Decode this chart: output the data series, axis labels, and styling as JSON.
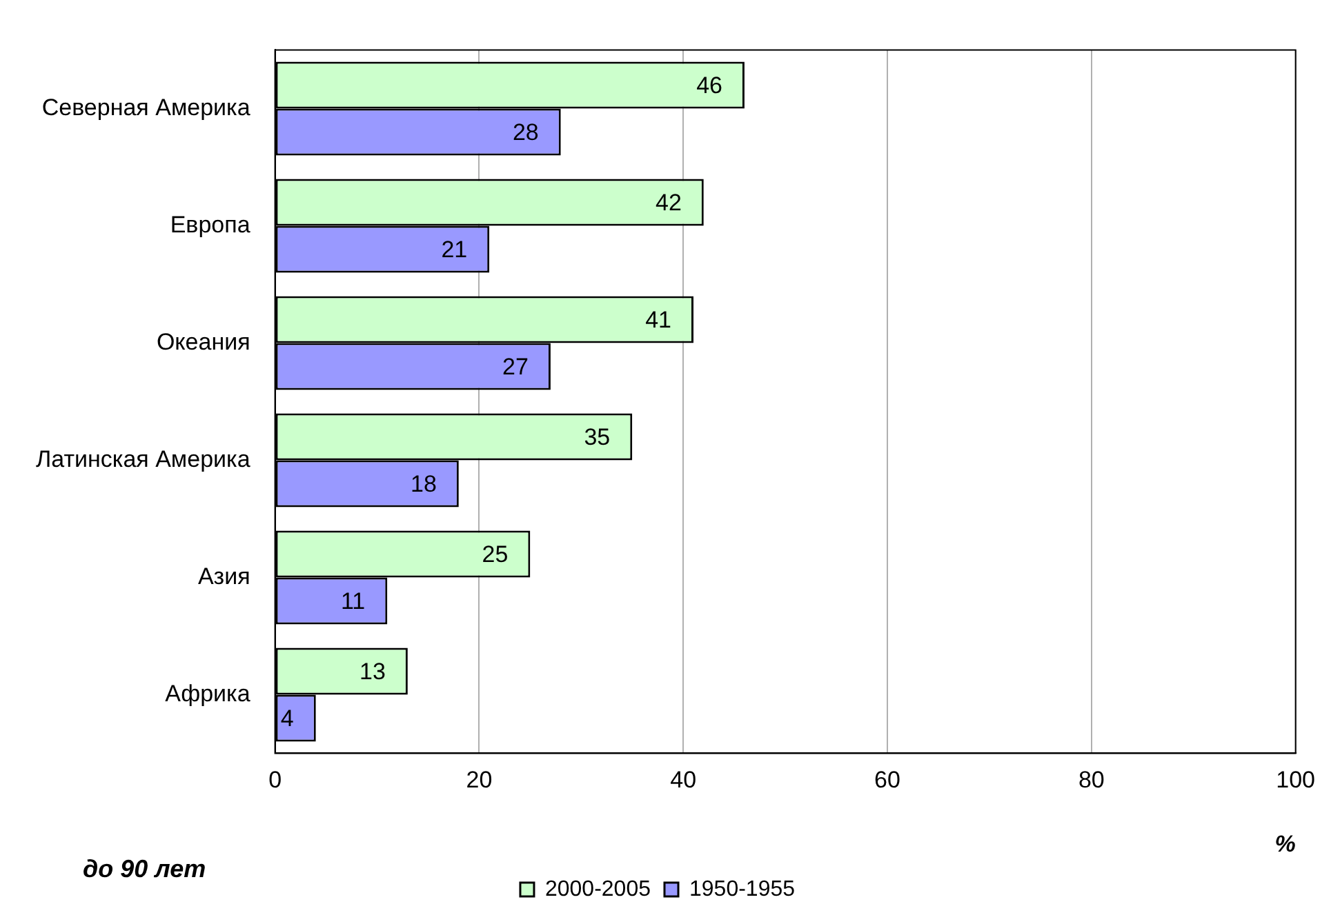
{
  "chart_data": {
    "type": "bar",
    "orientation": "horizontal",
    "categories": [
      "Северная Америка",
      "Европа",
      "Океания",
      "Латинская Америка",
      "Азия",
      "Африка"
    ],
    "series": [
      {
        "name": "2000-2005",
        "color": "#ccffcc",
        "values": [
          46,
          42,
          41,
          35,
          25,
          13
        ]
      },
      {
        "name": "1950-1955",
        "color": "#9999ff",
        "values": [
          28,
          21,
          27,
          18,
          11,
          4
        ]
      }
    ],
    "xlim": [
      0,
      100
    ],
    "xticks": [
      0,
      20,
      40,
      60,
      80,
      100
    ],
    "xlabel": "%",
    "annotations": [
      "до 90 лет"
    ],
    "grid": "x",
    "legend": "bottom",
    "data_labels": true
  }
}
